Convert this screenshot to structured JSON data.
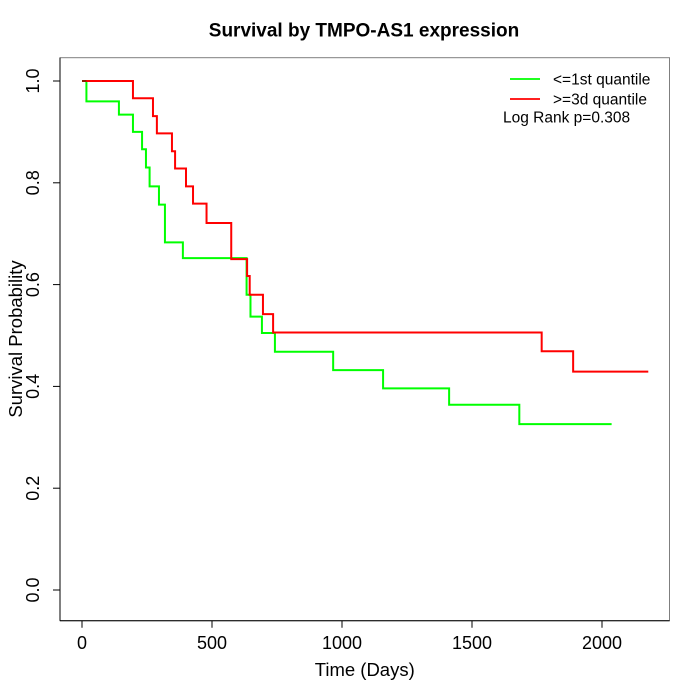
{
  "figure": {
    "title": "Survival by TMPO-AS1 expression"
  },
  "chart_data": {
    "type": "line",
    "subtype": "kaplan_meier_step_curves",
    "title": "Survival by TMPO-AS1 expression",
    "xlabel": "Time (Days)",
    "ylabel": "Survival Probability",
    "xlim": [
      0,
      2250
    ],
    "ylim": [
      0,
      1
    ],
    "x_ticks": [
      0,
      500,
      1000,
      1500,
      2000
    ],
    "y_tick_labels": [
      "0.0",
      "0.2",
      "0.4",
      "0.6",
      "0.8",
      "1.0"
    ],
    "grid": false,
    "legend": {
      "position": "top-right",
      "entries": [
        {
          "label": "<=1st quantile",
          "color": "#00ff00"
        },
        {
          "label": ">=3d quantile",
          "color": "#ff0000"
        }
      ]
    },
    "annotation": "Log Rank p=0.308",
    "overlap_color": "#8b2000",
    "series": [
      {
        "name": "<=1st quantile",
        "color": "#00ff00",
        "end_time": 2037,
        "points": [
          [
            0,
            1.0
          ],
          [
            17,
            0.96
          ],
          [
            142,
            0.934
          ],
          [
            196,
            0.9
          ],
          [
            231,
            0.866
          ],
          [
            246,
            0.83
          ],
          [
            260,
            0.793
          ],
          [
            296,
            0.757
          ],
          [
            319,
            0.683
          ],
          [
            388,
            0.652
          ],
          [
            633,
            0.58
          ],
          [
            648,
            0.537
          ],
          [
            692,
            0.505
          ],
          [
            742,
            0.468
          ],
          [
            966,
            0.432
          ],
          [
            1158,
            0.396
          ],
          [
            1412,
            0.364
          ],
          [
            1682,
            0.326
          ]
        ]
      },
      {
        "name": ">=3d quantile",
        "color": "#ff0000",
        "end_time": 2178,
        "points": [
          [
            0,
            1.0
          ],
          [
            196,
            0.966
          ],
          [
            273,
            0.931
          ],
          [
            288,
            0.897
          ],
          [
            346,
            0.862
          ],
          [
            358,
            0.828
          ],
          [
            400,
            0.793
          ],
          [
            427,
            0.759
          ],
          [
            479,
            0.721
          ],
          [
            574,
            0.65
          ],
          [
            635,
            0.617
          ],
          [
            645,
            0.58
          ],
          [
            696,
            0.542
          ],
          [
            735,
            0.506
          ],
          [
            1768,
            0.469
          ],
          [
            1889,
            0.429
          ]
        ]
      }
    ]
  }
}
